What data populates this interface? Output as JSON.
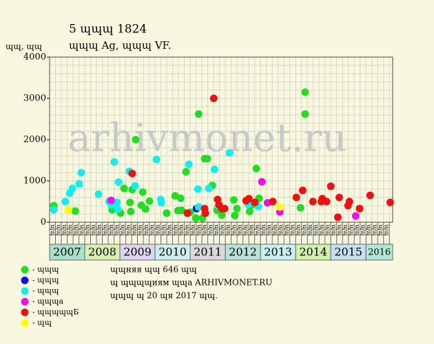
{
  "chart_data": {
    "type": "scatter",
    "title": "5 ɰɰɰ 1824",
    "subtitle": "ɰɰɰ Ag, ɰɰɰ VF.",
    "ylabel": "ɰɰ, ɰɰ",
    "watermark": "arhivmonet.ru",
    "xlim": [
      2007,
      2016.76
    ],
    "ylim": [
      0,
      4000
    ],
    "yticks": [
      0,
      1000,
      2000,
      3000,
      4000
    ],
    "grid": true,
    "year_bands": {
      "categories": [
        "2007",
        "2008",
        "2009",
        "2010",
        "2011",
        "2012",
        "2013",
        "2014",
        "2015",
        "2016"
      ],
      "x": [
        2007,
        2008,
        2009,
        2010,
        2011,
        2012,
        2013,
        2014,
        2015,
        2016
      ],
      "colors": [
        "#a8e0cc",
        "#d8f0b0",
        "#dcd4f0",
        "#cdeff0",
        "#d8d8d8",
        "#b8e4d8",
        "#c8f0f0",
        "#d4f0a8",
        "#c4e0f4",
        "#b0e8d4"
      ]
    },
    "period_labels": [
      "ɰɰ",
      "ɰɰ",
      "ɰɰ",
      "ɰɰ",
      "ɰɰ",
      "ɰɰ",
      "ɰɰ",
      "ɰɰ",
      "ɰɰ",
      "ɰɰ",
      "ɰɰ",
      "ɰɰ",
      "ɰɰ",
      "ɰɰ",
      "ɰɰ",
      "ɰɰ",
      "ɰɰ",
      "ɰɰ",
      "ɰɰ",
      "ɰɰ",
      "ɰɰ",
      "ɰɰ",
      "ɰɰ",
      "ɰɰ",
      "ɰɰ",
      "ɰɰ",
      "ɰɰ",
      "ɰɰ",
      "ɰɰ",
      "ɰɰ",
      "ɰɰ",
      "ɰɰ",
      "ɰɰ",
      "ɰɰ",
      "ɰɰ",
      "ɰɰ",
      "ɰɰ",
      "ɰɰ",
      "ɰɰ",
      "ɰɰ",
      "ɰɰ",
      "ɰɰ",
      "ɰɰ",
      "ɰɰ",
      "ɰɰ",
      "ɰɰ",
      "ɰɰ",
      "ɰɰ",
      "ɰɰ",
      "ɰɰ",
      "ɰɰ",
      "ɰɰ",
      "ɰɰ",
      "ɰɰ",
      "ɰɰ",
      "ɰɰ",
      "ɰɰ",
      "ɰɰ"
    ],
    "series": [
      {
        "name": "- ɰɰɰ",
        "color": "#22dd22",
        "x": [
          2007.12,
          2007.73,
          2008.78,
          2009.02,
          2009.12,
          2009.29,
          2009.31,
          2009.35,
          2009.45,
          2009.61,
          2009.65,
          2009.73,
          2009.84,
          2010.33,
          2010.57,
          2010.65,
          2010.73,
          2010.76,
          2010.88,
          2011.0,
          2011.16,
          2011.24,
          2011.35,
          2011.41,
          2011.49,
          2011.63,
          2011.76,
          2011.9,
          2012.24,
          2012.27,
          2012.33,
          2012.69,
          2012.76,
          2012.88,
          2012.96,
          2014.14,
          2014.27,
          2014.27
        ],
        "values": [
          400,
          270,
          300,
          220,
          820,
          480,
          260,
          790,
          2000,
          410,
          730,
          320,
          510,
          220,
          640,
          280,
          580,
          290,
          1220,
          240,
          100,
          2620,
          100,
          1540,
          1540,
          890,
          290,
          170,
          540,
          160,
          330,
          260,
          420,
          1300,
          580,
          350,
          3150,
          2620
        ]
      },
      {
        "name": "- ɰɰɰ",
        "color": "#1111dd",
        "x": [
          2011.18
        ],
        "values": [
          330
        ]
      },
      {
        "name": "- ɰɰɰ",
        "color": "#11eeee",
        "x": [
          2007.12,
          2007.45,
          2007.57,
          2007.65,
          2007.84,
          2007.9,
          2008.39,
          2008.69,
          2008.75,
          2008.84,
          2008.92,
          2008.96,
          2008.94,
          2009.27,
          2009.43,
          2010.04,
          2010.16,
          2010.18,
          2010.96,
          2011.22,
          2011.24,
          2011.53,
          2011.69,
          2011.8,
          2012.12,
          2012.65,
          2012.94
        ],
        "values": [
          300,
          500,
          700,
          820,
          930,
          1200,
          680,
          500,
          420,
          1460,
          480,
          970,
          320,
          1230,
          880,
          1520,
          550,
          470,
          1400,
          800,
          370,
          820,
          1280,
          400,
          1680,
          430,
          380
        ]
      },
      {
        "name": "- ɰɰɰa",
        "color": "#ee11ee",
        "x": [
          2008.75,
          2013.04,
          2013.2,
          2013.55,
          2015.71
        ],
        "values": [
          530,
          980,
          470,
          250,
          150
        ]
      },
      {
        "name": "- ɰɰɰɰɰБ",
        "color": "#ee1111",
        "x": [
          2009.35,
          2010.92,
          2011.41,
          2011.43,
          2011.67,
          2011.78,
          2011.82,
          2011.9,
          2011.98,
          2012.59,
          2012.67,
          2012.84,
          2013.35,
          2014.02,
          2014.2,
          2014.49,
          2014.73,
          2014.76,
          2014.88,
          2015.0,
          2015.2,
          2015.24,
          2015.49,
          2015.53,
          2015.82,
          2016.12,
          2016.69
        ],
        "values": [
          1180,
          220,
          330,
          220,
          3000,
          550,
          420,
          330,
          330,
          520,
          570,
          480,
          500,
          600,
          770,
          500,
          500,
          570,
          500,
          870,
          120,
          600,
          400,
          500,
          330,
          650,
          480
        ]
      },
      {
        "name": "- ɰɰ",
        "color": "#ffff00",
        "x": [
          2007.53,
          2013.55
        ],
        "values": [
          300,
          370
        ]
      }
    ],
    "notes": [
      "ɰɰняя ɰɰ 646 ɰɰ",
      "ɰ ɰɰɰɰиям ɰɰa ARHIVMONET.RU",
      "ɰɰɰ ɰ 20 ɰя 2017 ɰɰ."
    ]
  }
}
